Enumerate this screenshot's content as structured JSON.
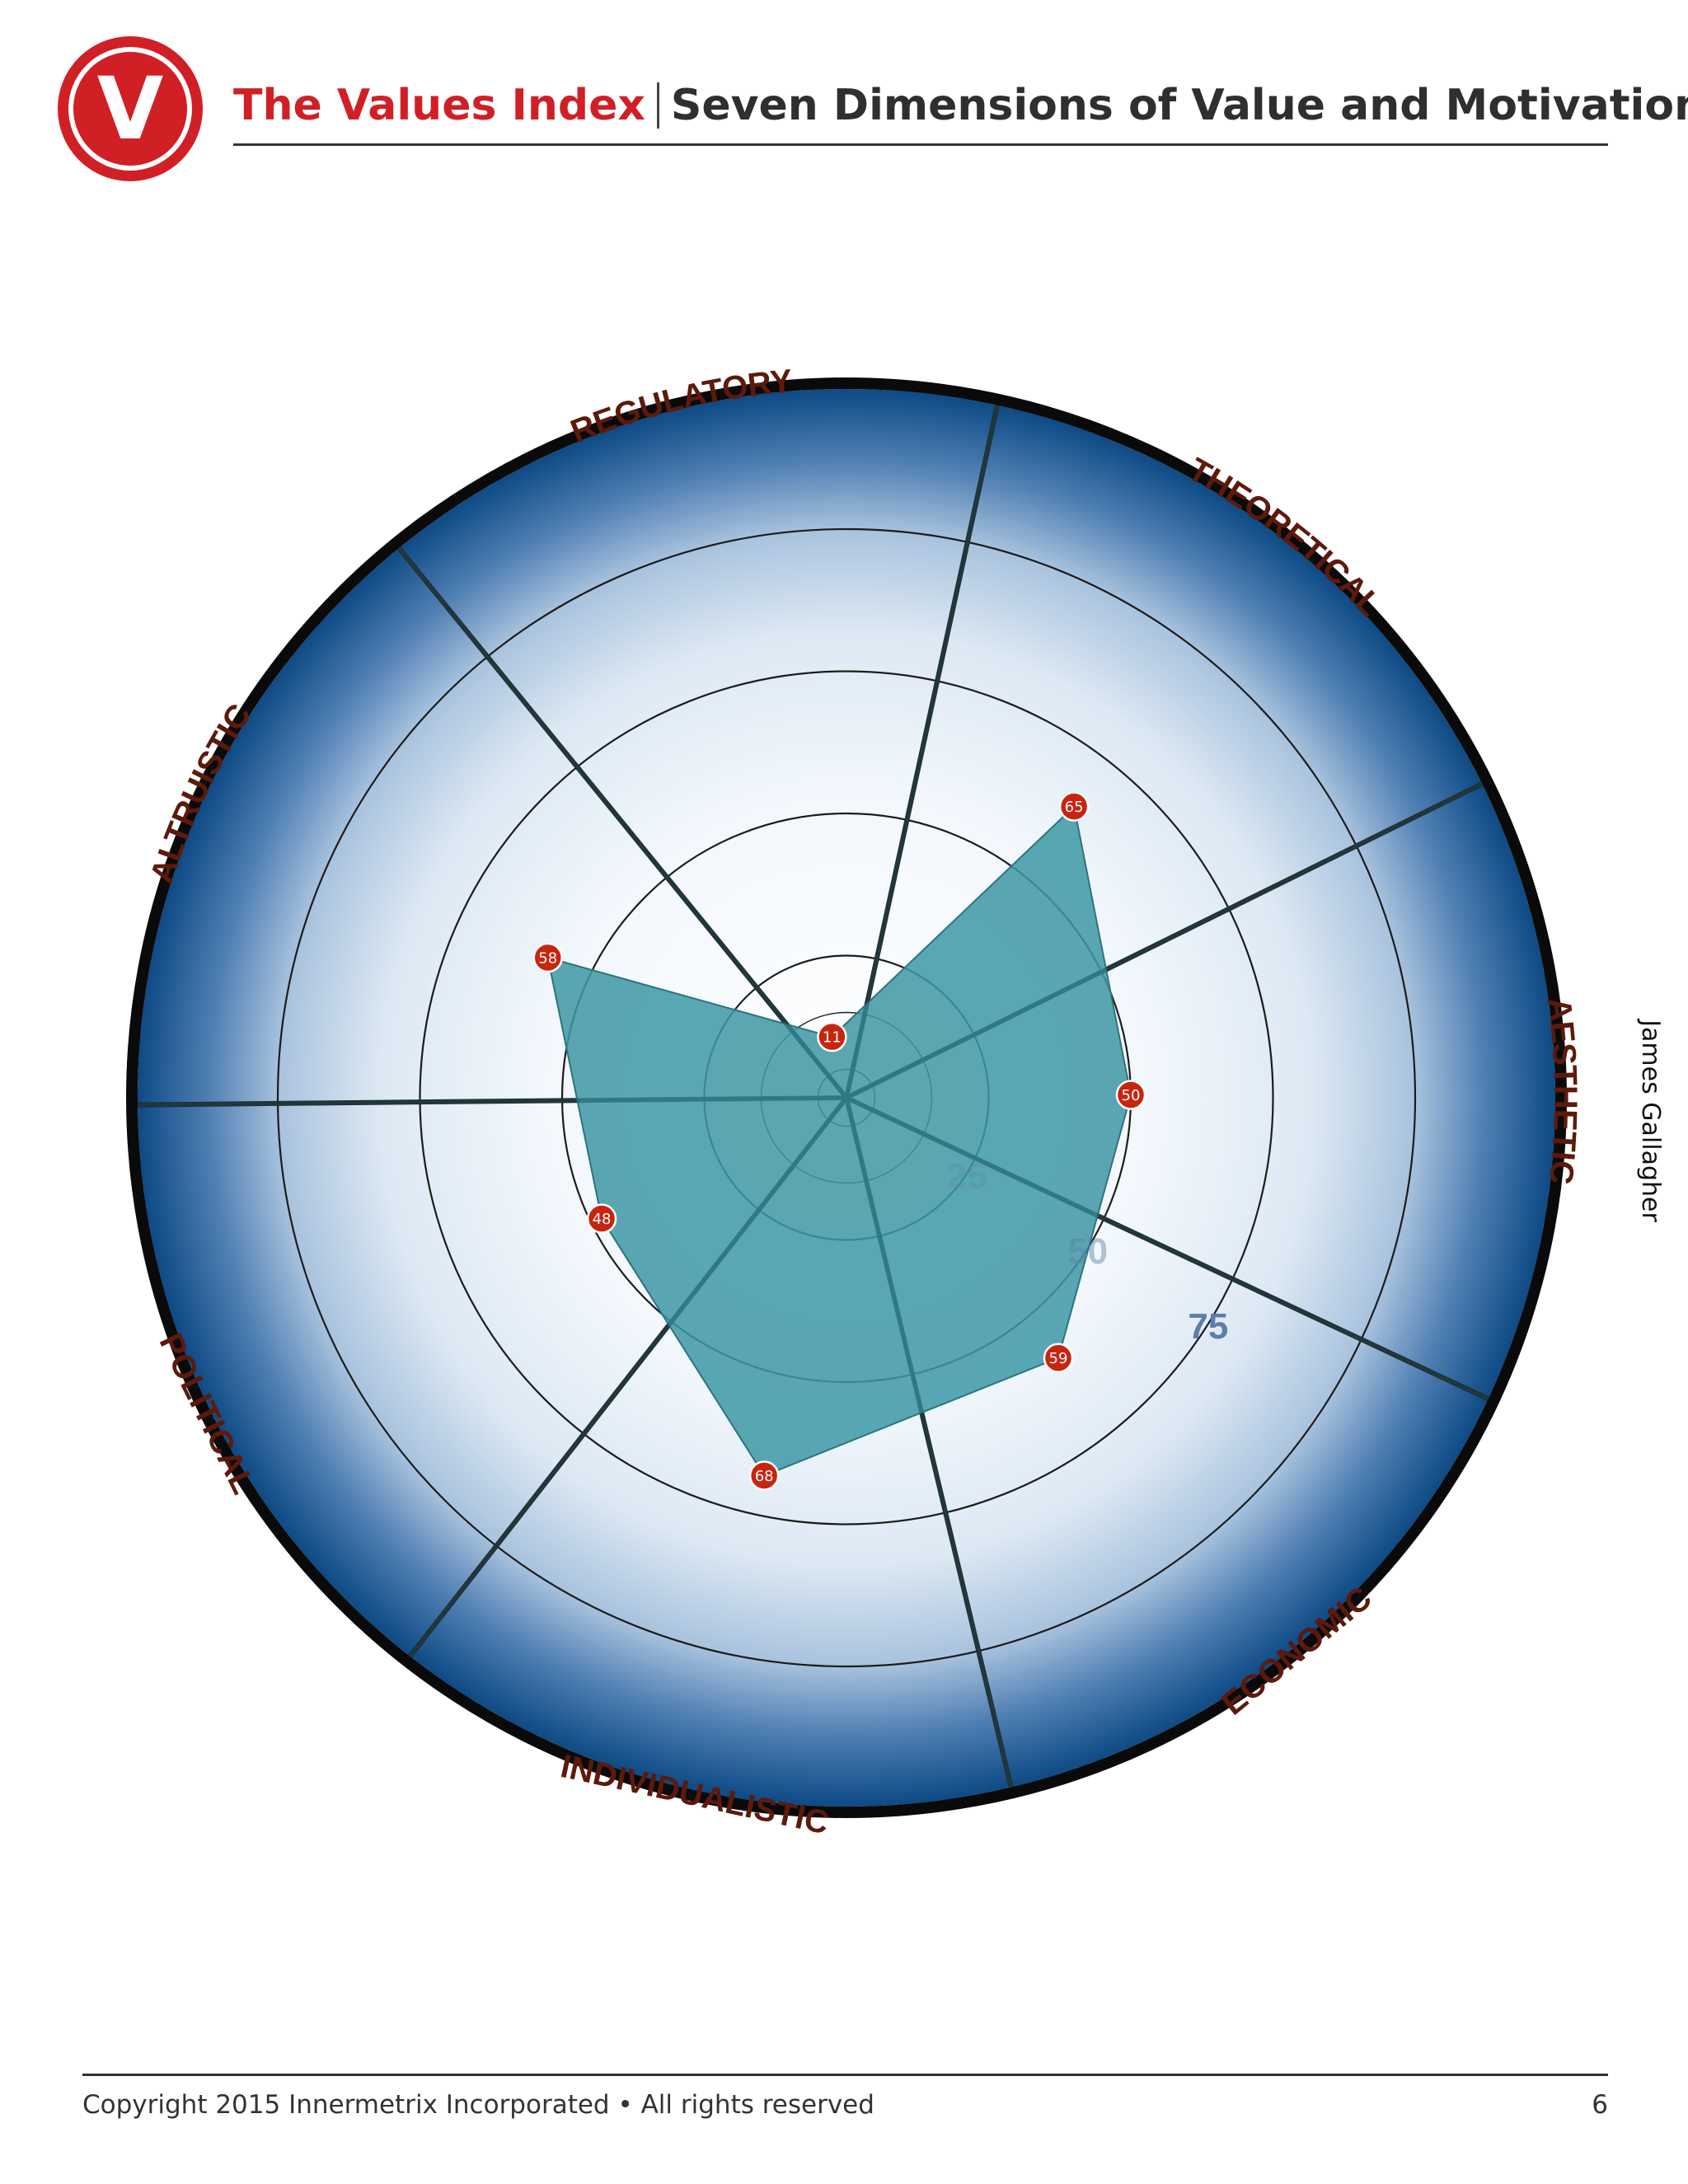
{
  "header": {
    "logo_letter": "V",
    "brand": "The Values Index",
    "subtitle": "Seven Dimensions of Value and Motivation"
  },
  "side_label": "James Gallagher",
  "footer": {
    "copyright": "Copyright 2015 Innermetrix Incorporated • All rights reserved",
    "page_number": "6"
  },
  "colors": {
    "brand_red": "#d11f26",
    "polygon_fill": "#3f98a5",
    "marker_red": "#c8250f",
    "axis_label": "#5c1a0c",
    "ring_dark": "#0e4a85",
    "ring_light": "#ffffff",
    "scale_label": "#5c7fa8"
  },
  "chart_data": {
    "type": "radar",
    "title": "",
    "axes": [
      "THEORETICAL",
      "AESTHETIC",
      "ECONOMIC",
      "INDIVIDUALISTIC",
      "POLITICAL",
      "ALTRUISTIC",
      "REGULATORY"
    ],
    "values": [
      65,
      50,
      59,
      68,
      48,
      58,
      11
    ],
    "scale_labels": [
      {
        "value": 25,
        "text": "25"
      },
      {
        "value": 50,
        "text": "50"
      },
      {
        "value": 75,
        "text": "75"
      }
    ],
    "rings": [
      5,
      15,
      25,
      50,
      75,
      100
    ],
    "r_range": [
      0,
      100
    ],
    "grid": true
  }
}
